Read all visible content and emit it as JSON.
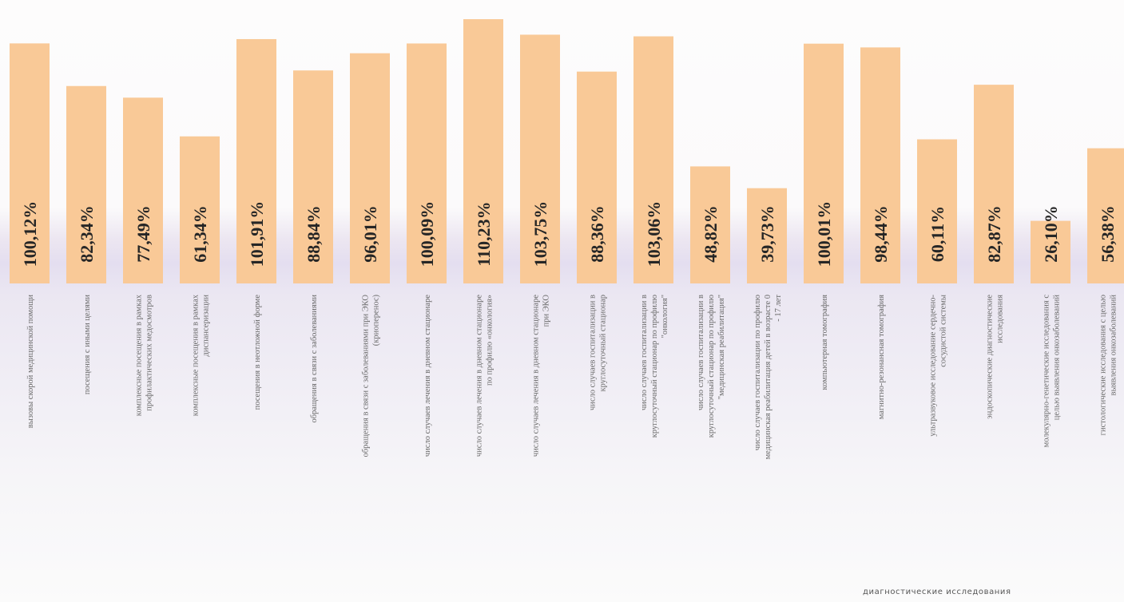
{
  "chart_data": {
    "type": "bar",
    "categories": [
      [
        "вызовы скорой медицинской помощи"
      ],
      [
        "посещения с иными целями"
      ],
      [
        "комплексные посещения в рамках",
        "профилактических медосмотров"
      ],
      [
        "комплексные посещения в рамках",
        "диспансеризации"
      ],
      [
        "посещения в неотложной форме"
      ],
      [
        "обращения в связи с заболеваниями"
      ],
      [
        "обращения в связи с заболеваниями при ЭКО",
        "(криоперенос)"
      ],
      [
        "число случаев лечения в дневном стационаре"
      ],
      [
        "число случаев лечения в дневном стационаре",
        "по профилю «онкология»"
      ],
      [
        "число случаев лечения в дневном стационаре",
        "при ЭКО"
      ],
      [
        "число случаев госпитализации в",
        "круглосуточный стационар"
      ],
      [
        "число случаев госпитализации в",
        "круглосуточный стационар по профилю",
        "\"онкология\""
      ],
      [
        "число случаев госпитализации в",
        "круглосуточный стационар по профилю",
        "\"медицинская реабилитация\""
      ],
      [
        "число случаев госпитализации по профилю",
        "медицинская реабилитация детей в возрасте 0",
        "- 17 лет"
      ],
      [
        "компьютерная томография"
      ],
      [
        "магнитно-резонансная томография"
      ],
      [
        "ультразвуковое исследование сердечно-",
        "сосудистой системы"
      ],
      [
        "эндоскопические диагностические",
        "исследования"
      ],
      [
        "молекулярно-генетические исследования с",
        "целью выявления онкозаболеваний"
      ],
      [
        "гистологические исследования с целью",
        "выявления онкозаболеваний"
      ]
    ],
    "values": [
      100.12,
      82.34,
      77.49,
      61.34,
      101.91,
      88.84,
      96.01,
      100.09,
      110.23,
      103.75,
      88.36,
      103.06,
      48.82,
      39.73,
      100.01,
      98.44,
      60.11,
      82.87,
      26.1,
      56.38
    ],
    "value_labels": [
      "100,12%",
      "82,34%",
      "77,49%",
      "61,34%",
      "101,91%",
      "88,84%",
      "96,01%",
      "100,09%",
      "110,23%",
      "103,75%",
      "88,36%",
      "103,06%",
      "48,82%",
      "39,73%",
      "100,01%",
      "98,44%",
      "60,11%",
      "82,87%",
      "26,10%",
      "56,38%"
    ],
    "ylim": [
      0,
      110.23
    ],
    "grid": false,
    "legend": "none",
    "bar_color": "#f9c997",
    "caption": "диагностические исследования"
  }
}
